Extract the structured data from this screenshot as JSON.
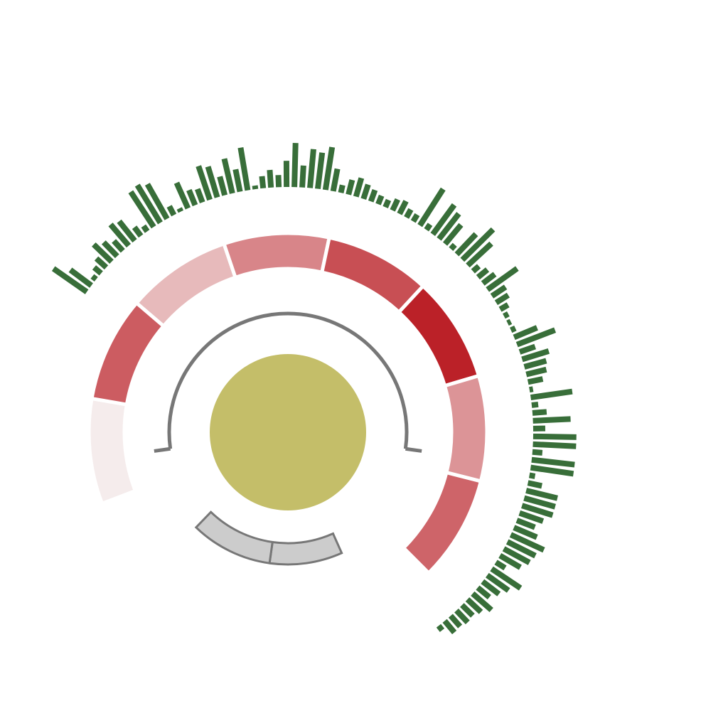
{
  "chart_data": {
    "type": "radial-tracks",
    "title": "",
    "tracks": {
      "center_circle": {
        "color": "#c4be69"
      },
      "heat_ring": {
        "start_angle": 249,
        "end_angle": 495,
        "segments": [
          {
            "value": 0.03
          },
          {
            "value": 0.72
          },
          {
            "value": 0.27
          },
          {
            "value": 0.52
          },
          {
            "value": 0.78
          },
          {
            "value": 1.0
          },
          {
            "value": 0.45
          },
          {
            "value": 0.68
          }
        ],
        "color_low": "#f7f2f2",
        "color_high": "#bb2128",
        "separator_color": "#ffffff"
      },
      "arc_blocks": {
        "baseline_start_angle": 262,
        "baseline_end_angle": 458,
        "blocks": [
          {
            "start": 156,
            "end": 188
          },
          {
            "start": 188,
            "end": 224
          }
        ],
        "fill": "#cccccc",
        "stroke": "#777777"
      },
      "bar_ring": {
        "start_angle": 304,
        "end_angle": 503,
        "color": "#386e39",
        "values": [
          0.92,
          0.58,
          0.08,
          0.18,
          0.28,
          0.55,
          0.42,
          0.28,
          0.62,
          0.55,
          0.22,
          0.12,
          0.95,
          1.0,
          0.9,
          0.2,
          0.05,
          0.62,
          0.35,
          0.3,
          0.8,
          0.72,
          0.42,
          0.8,
          0.5,
          0.98,
          0.05,
          0.25,
          0.38,
          0.25,
          0.58,
          1.0,
          0.48,
          0.88,
          0.82,
          0.98,
          0.5,
          0.15,
          0.32,
          0.42,
          0.32,
          0.25,
          0.18,
          0.15,
          0.25,
          0.3,
          0.18,
          0.15,
          0.98,
          0.12,
          0.82,
          0.72,
          0.55,
          0.1,
          0.62,
          0.98,
          0.72,
          0.15,
          0.25,
          0.32,
          0.82,
          0.35,
          0.3,
          0.18,
          0.08,
          0.05,
          0.08,
          0.55,
          0.92,
          0.35,
          0.62,
          0.5,
          0.45,
          0.32,
          0.05,
          0.95,
          0.12,
          0.3,
          0.85,
          0.25,
          0.98,
          0.98,
          0.2,
          0.98,
          0.98,
          0.1,
          0.3,
          0.72,
          0.72,
          0.72,
          0.55,
          0.42,
          0.55,
          0.82,
          0.7,
          0.65,
          0.52,
          0.22,
          0.78,
          0.58,
          0.45,
          0.32,
          0.55,
          0.4,
          0.32,
          0.35,
          0.3,
          0.32,
          0.1
        ]
      }
    }
  }
}
